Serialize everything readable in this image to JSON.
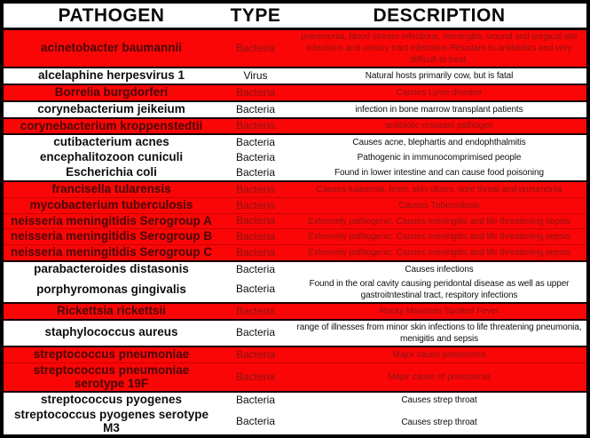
{
  "table": {
    "columns": [
      "PATHOGEN",
      "TYPE",
      "DESCRIPTION"
    ],
    "rows": [
      {
        "pathogen": "acinetobacter baumannii",
        "type": "Bacteria",
        "description": "pneumonia, blood stream infections, meningitis, wound and surgical site infections and urinary tract infections Resistant to antibiotics and very difficult to treat.",
        "highlight": true
      },
      {
        "pathogen": "alcelaphine herpesvirus 1",
        "type": "Virus",
        "description": "Natural hosts primarily cow, but is fatal",
        "highlight": false
      },
      {
        "pathogen": "Borrelia burgdorferi",
        "type": "Bacteria",
        "description": "Causes Lyme disease",
        "highlight": true
      },
      {
        "pathogen": "corynebacterium jeikeium",
        "type": "Bacteria",
        "description": "infection in bone marrow transplant patients",
        "highlight": false
      },
      {
        "pathogen": "corynebacterium kroppenstedtii",
        "type": "Bacteria",
        "description": "antibiotic resistant pathogen",
        "highlight": true
      },
      {
        "pathogen": "cutibacterium acnes",
        "type": "Bacteria",
        "description": "Causes acne, blephartis and endophthalmitis",
        "highlight": false
      },
      {
        "pathogen": "encephalitozoon cuniculi",
        "type": "Bacteria",
        "description": "Pathogenic in immunocomprimised people",
        "highlight": false
      },
      {
        "pathogen": "Escherichia coli",
        "type": "Bacteria",
        "description": "Found in lower intestine and can cause food poisoning",
        "highlight": false
      },
      {
        "pathogen": "francisella tularensis",
        "type": "Bacteria",
        "description": "Causes tularemia, fever, skin ulcers, sore throat and pneumonia",
        "highlight": true
      },
      {
        "pathogen": "mycobacterium tuberculosis",
        "type": "Bacteria",
        "description": "Causes Tuberculosis",
        "highlight": true
      },
      {
        "pathogen": "neisseria meningitidis Serogroup A",
        "type": "Bacteria",
        "description": "Extremely pathogenic. Causes meningitis and life threatening sepsis",
        "highlight": true
      },
      {
        "pathogen": "neisseria meningitidis Serogroup B",
        "type": "Bacteria",
        "description": "Extremely pathogenic. Causes meningitis and life threatening sepsis",
        "highlight": true
      },
      {
        "pathogen": "neisseria meningitidis Serogroup C",
        "type": "Bacteria",
        "description": "Extremely pathogenic. Causes meningitis and life threatening sepsis",
        "highlight": true
      },
      {
        "pathogen": "parabacteroides distasonis",
        "type": "Bacteria",
        "description": "Causes infections",
        "highlight": false
      },
      {
        "pathogen": "porphyromonas gingivalis",
        "type": "Bacteria",
        "description": "Found in the oral cavity causing peridontal disease as well as upper gastroitntestinal tract, respitory infections",
        "highlight": false
      },
      {
        "pathogen": "Rickettsia rickettsii",
        "type": "Bacteria",
        "description": "Rocky Mountain Spotted Fever",
        "highlight": true
      },
      {
        "pathogen": "staphylococcus aureus",
        "type": "Bacteria",
        "description": "range of illnesses from minor skin infections to life threatening pneumonia, menigitis and sepsis",
        "highlight": false
      },
      {
        "pathogen": "streptococcus pneumoniae",
        "type": "Bacteria",
        "description": "Major cause pneumonia",
        "highlight": true
      },
      {
        "pathogen": "streptococcus pneumoniae serotype 19F",
        "type": "Bacteria",
        "description": "Major cause of pneumonia",
        "highlight": true
      },
      {
        "pathogen": "streptococcus pyogenes",
        "type": "Bacteria",
        "description": "Causes strep throat",
        "highlight": false
      },
      {
        "pathogen": "streptococcus pyogenes serotype M3",
        "type": "Bacteria",
        "description": "Causes strep throat",
        "highlight": false
      }
    ]
  },
  "colors": {
    "highlight_row_bg": "#fa0606",
    "highlight_name_text": "#470808",
    "highlight_body_text": "#8a1414",
    "normal_text": "#0f0f0f",
    "border": "#000000"
  }
}
